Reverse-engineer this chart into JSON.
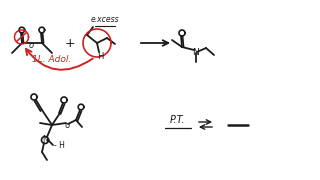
{
  "bg_color": "#ffffff",
  "ink_color": "#1a1a1a",
  "red_color": "#cc2222",
  "figsize": [
    3.2,
    1.8
  ],
  "dpi": 100,
  "excess_label": "e.xcess",
  "nadd_label": "1L. Adol.",
  "pt_label": "P.T."
}
